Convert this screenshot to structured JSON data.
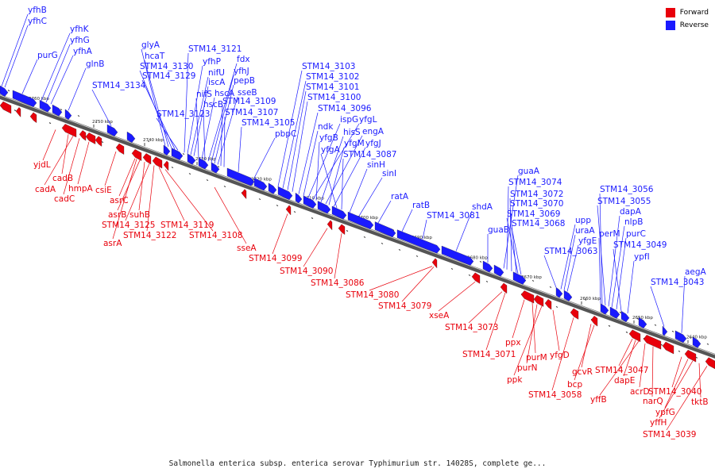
{
  "legend": {
    "forward": {
      "label": "Forward",
      "color": "#e8000b"
    },
    "reverse": {
      "label": "Reverse",
      "color": "#1a1aff"
    }
  },
  "caption": "Salmonella enterica subsp. enterica serovar Typhimurium str. 14028S, complete ge...",
  "axis": {
    "ticks": [
      "2760 kbp",
      "2750 kbp",
      "2740 kbp",
      "2730 kbp",
      "2720 kbp",
      "2710 kbp",
      "2700 kbp",
      "2690 kbp",
      "2680 kbp",
      "2670 kbp",
      "2660 kbp",
      "2650 kbp",
      "2640 kbp"
    ]
  },
  "reverse_labels": [
    "yfhB",
    "yfhC",
    "yfhK",
    "yfhG",
    "yfhA",
    "purG",
    "glnB",
    "glyA",
    "hcaT",
    "STM14_3130",
    "STM14_3129",
    "STM14_3134",
    "STM14_3121",
    "yfhP",
    "nifU",
    "iscA",
    "nifS",
    "hscA",
    "hscB",
    "fdx",
    "yfhJ",
    "pepB",
    "sseB",
    "STM14_3109",
    "STM14_3107",
    "STM14_3105",
    "STM14_3123",
    "pbpC",
    "STM14_3103",
    "STM14_3102",
    "STM14_3101",
    "STM14_3100",
    "STM14_3096",
    "ndk",
    "ispG",
    "yfgL",
    "yfgB",
    "hisS",
    "engA",
    "yfgM",
    "yfgJ",
    "yfgA",
    "STM14_3087",
    "sinH",
    "sinI",
    "ratA",
    "ratB",
    "STM14_3081",
    "shdA",
    "guaB",
    "guaA",
    "STM14_3074",
    "STM14_3072",
    "STM14_3070",
    "STM14_3069",
    "STM14_3068",
    "STM14_3063",
    "upp",
    "uraA",
    "yfgE",
    "perM",
    "STM14_3056",
    "STM14_3055",
    "dapA",
    "nlpB",
    "purC",
    "STM14_3049",
    "ypfI",
    "STM14_3043",
    "aegA"
  ],
  "forward_labels": [
    "yjdL",
    "cadB",
    "cadA",
    "cadC",
    "hmpA",
    "csiE",
    "asrC",
    "asrB",
    "suhB",
    "STM14_3125",
    "STM14_3122",
    "asrA",
    "STM14_3119",
    "STM14_3108",
    "sseA",
    "STM14_3099",
    "STM14_3090",
    "STM14_3086",
    "STM14_3080",
    "STM14_3079",
    "xseA",
    "STM14_3073",
    "STM14_3071",
    "ppx",
    "purM",
    "purN",
    "ppk",
    "yfgD",
    "gcvR",
    "bcp",
    "STM14_3058",
    "STM14_3047",
    "dapE",
    "yffB",
    "acrD",
    "narQ",
    "STM14_3040",
    "ypfG",
    "yffH",
    "tktB",
    "STM14_3039"
  ]
}
